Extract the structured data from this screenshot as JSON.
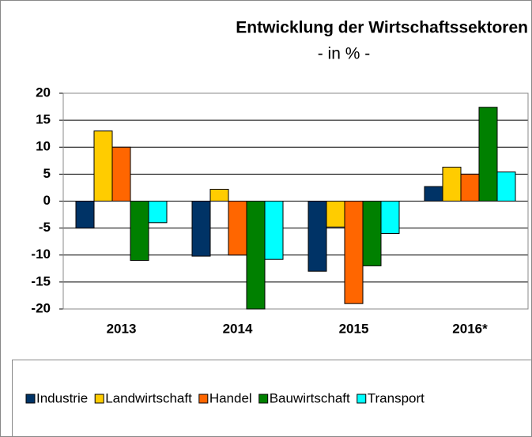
{
  "chart_data": {
    "type": "bar",
    "title": "Entwicklung der Wirtschaftssektoren",
    "subtitle": "- in % -",
    "categories": [
      "2013",
      "2014",
      "2015",
      "2016*"
    ],
    "series": [
      {
        "name": "Industrie",
        "color": "#003366",
        "values": [
          -5,
          -10.2,
          -13,
          2.7
        ]
      },
      {
        "name": "Landwirtschaft",
        "color": "#ffcc00",
        "values": [
          13,
          2.2,
          -4.8,
          6.3
        ]
      },
      {
        "name": "Handel",
        "color": "#ff6600",
        "values": [
          10,
          -10,
          -19,
          5
        ]
      },
      {
        "name": "Bauwirtschaft",
        "color": "#008000",
        "values": [
          -11,
          -20,
          -12,
          17.4
        ]
      },
      {
        "name": "Transport",
        "color": "#00ffff",
        "values": [
          -4,
          -10.8,
          -6,
          5.4
        ]
      }
    ],
    "ylim": [
      -20,
      20
    ],
    "yticks": [
      -20,
      -15,
      -10,
      -5,
      0,
      5,
      10,
      15,
      20
    ],
    "grid": true,
    "legend": "bottom"
  }
}
